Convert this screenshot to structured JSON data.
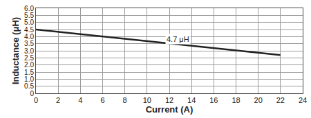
{
  "chart_data": {
    "type": "line",
    "x_label": "Current (A)",
    "y_label": "Inductance (μH)",
    "x": [
      0,
      22
    ],
    "values": [
      4.5,
      2.7
    ],
    "color": "#222222",
    "xlim": [
      0,
      24
    ],
    "xticks": [
      0,
      2,
      4,
      6,
      8,
      10,
      12,
      14,
      16,
      18,
      20,
      22,
      24
    ],
    "ylim": [
      0,
      6.0
    ],
    "yticks": [
      0,
      0.5,
      {
        "value": 1.0,
        "label": "1.0"
      },
      1.5,
      {
        "value": 2.0,
        "label": "2.0"
      },
      2.5,
      {
        "value": 3.0,
        "label": "3.0"
      },
      3.5,
      {
        "value": 4.0,
        "label": "4.0"
      },
      4.5,
      {
        "value": 5.0,
        "label": "5.0"
      },
      5.5,
      {
        "value": 6.0,
        "label": "6.0"
      }
    ],
    "grid": true,
    "annotations": [
      {
        "text": "4.7 μH",
        "x": 12.8,
        "y": 3.8
      }
    ]
  }
}
